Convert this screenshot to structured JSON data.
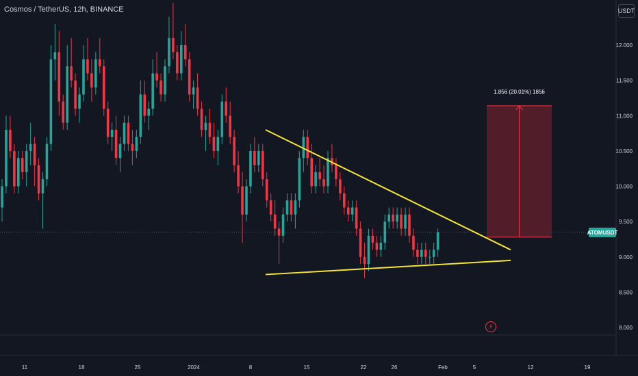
{
  "header": {
    "title": "Cosmos / TetherUS, 12h, BINANCE"
  },
  "currency_button": "USDT",
  "last_price_tag": "ATOMUSDT",
  "colors": {
    "background": "#131722",
    "bull": "#26a69a",
    "bear": "#f23645",
    "trendline": "#f5e634",
    "target_box_fill": "#5d1f2a",
    "target_box_stroke": "#f23645",
    "grid": "#2a2e39",
    "axis_text": "#d1d4dc"
  },
  "icons": {
    "flash": "lightning-bolt-icon"
  },
  "chart_data": {
    "type": "candlestick",
    "symbol": "ATOMUSDT",
    "interval": "12h",
    "exchange": "BINANCE",
    "y_axis": {
      "ticks": [
        "12.000",
        "11.500",
        "11.000",
        "10.500",
        "10.000",
        "9.500",
        "9.000",
        "8.500",
        "8.000"
      ],
      "range": [
        7.45,
        12.7
      ]
    },
    "x_axis": {
      "ticks": [
        "11",
        "18",
        "25",
        "2024",
        "8",
        "15",
        "22",
        "26",
        "Feb",
        "5",
        "12",
        "19"
      ]
    },
    "last_price": 9.35,
    "trendlines": [
      {
        "name": "descending resistance",
        "from": {
          "x": "2024-01-10",
          "y": 10.8
        },
        "to": {
          "x": "2024-02-06",
          "y": 9.1
        }
      },
      {
        "name": "ascending support",
        "from": {
          "x": "2024-01-12",
          "y": 8.75
        },
        "to": {
          "x": "2024-02-06",
          "y": 8.95
        }
      }
    ],
    "projection": {
      "label": "1.856 (20.01%) 1856",
      "from_price": 9.28,
      "to_price": 11.14
    },
    "candles_ohlc": [
      [
        9.7,
        10.1,
        9.5,
        10.0
      ],
      [
        10.0,
        11.0,
        9.9,
        10.8
      ],
      [
        10.8,
        11.0,
        10.4,
        10.5
      ],
      [
        10.5,
        10.6,
        9.9,
        10.0
      ],
      [
        10.0,
        10.5,
        9.9,
        10.4
      ],
      [
        10.4,
        10.5,
        10.1,
        10.2
      ],
      [
        10.2,
        10.6,
        10.0,
        10.5
      ],
      [
        10.5,
        10.9,
        10.3,
        10.6
      ],
      [
        10.6,
        10.7,
        10.0,
        10.3
      ],
      [
        10.3,
        10.4,
        9.8,
        9.9
      ],
      [
        9.9,
        10.2,
        9.4,
        10.1
      ],
      [
        10.1,
        10.7,
        10.0,
        10.6
      ],
      [
        10.6,
        12.0,
        10.5,
        11.8
      ],
      [
        11.8,
        12.3,
        11.5,
        11.9
      ],
      [
        11.9,
        12.2,
        11.0,
        11.2
      ],
      [
        11.2,
        11.3,
        10.8,
        10.9
      ],
      [
        10.9,
        12.0,
        10.8,
        11.7
      ],
      [
        11.7,
        12.1,
        11.4,
        11.5
      ],
      [
        11.5,
        11.6,
        11.0,
        11.1
      ],
      [
        11.1,
        11.4,
        10.9,
        11.3
      ],
      [
        11.3,
        12.0,
        11.2,
        11.8
      ],
      [
        11.8,
        12.1,
        11.5,
        11.6
      ],
      [
        11.6,
        11.8,
        11.2,
        11.4
      ],
      [
        11.4,
        11.9,
        11.3,
        11.8
      ],
      [
        11.8,
        12.1,
        11.6,
        11.7
      ],
      [
        11.7,
        11.8,
        11.0,
        11.1
      ],
      [
        11.1,
        11.2,
        10.6,
        10.7
      ],
      [
        10.7,
        10.9,
        10.5,
        10.8
      ],
      [
        10.8,
        11.0,
        10.3,
        10.4
      ],
      [
        10.4,
        10.7,
        10.2,
        10.6
      ],
      [
        10.6,
        11.0,
        10.5,
        10.9
      ],
      [
        10.9,
        11.0,
        10.5,
        10.6
      ],
      [
        10.6,
        10.8,
        10.3,
        10.5
      ],
      [
        10.5,
        10.8,
        10.4,
        10.7
      ],
      [
        10.7,
        11.5,
        10.6,
        11.3
      ],
      [
        11.3,
        11.5,
        10.9,
        11.0
      ],
      [
        11.0,
        11.2,
        10.8,
        11.1
      ],
      [
        11.1,
        11.8,
        11.0,
        11.6
      ],
      [
        11.6,
        11.9,
        11.4,
        11.5
      ],
      [
        11.5,
        11.6,
        11.2,
        11.3
      ],
      [
        11.3,
        11.8,
        11.2,
        11.7
      ],
      [
        11.7,
        12.4,
        11.6,
        12.1
      ],
      [
        12.1,
        12.6,
        11.8,
        11.9
      ],
      [
        11.9,
        12.0,
        11.5,
        11.6
      ],
      [
        11.6,
        12.2,
        11.5,
        12.0
      ],
      [
        12.0,
        12.3,
        11.7,
        11.8
      ],
      [
        11.8,
        11.9,
        11.2,
        11.3
      ],
      [
        11.3,
        11.5,
        11.1,
        11.4
      ],
      [
        11.4,
        11.6,
        11.0,
        11.1
      ],
      [
        11.1,
        11.2,
        10.7,
        10.8
      ],
      [
        10.8,
        11.0,
        10.5,
        10.9
      ],
      [
        10.9,
        11.1,
        10.6,
        10.7
      ],
      [
        10.7,
        10.9,
        10.4,
        10.5
      ],
      [
        10.5,
        10.8,
        10.3,
        10.7
      ],
      [
        10.7,
        11.3,
        10.6,
        11.2
      ],
      [
        11.2,
        11.4,
        10.9,
        11.0
      ],
      [
        11.0,
        11.2,
        10.6,
        10.7
      ],
      [
        10.7,
        10.8,
        10.2,
        10.3
      ],
      [
        10.3,
        10.5,
        9.9,
        10.0
      ],
      [
        10.0,
        10.2,
        9.2,
        9.6
      ],
      [
        9.6,
        10.1,
        9.5,
        10.0
      ],
      [
        10.0,
        10.6,
        9.9,
        10.5
      ],
      [
        10.5,
        10.7,
        10.2,
        10.3
      ],
      [
        10.3,
        10.6,
        10.2,
        10.5
      ],
      [
        10.5,
        10.6,
        10.0,
        10.1
      ],
      [
        10.1,
        10.2,
        9.7,
        9.8
      ],
      [
        9.8,
        9.9,
        9.5,
        9.6
      ],
      [
        9.6,
        9.8,
        9.3,
        9.4
      ],
      [
        9.4,
        9.5,
        8.9,
        9.3
      ],
      [
        9.3,
        9.7,
        9.2,
        9.6
      ],
      [
        9.6,
        9.9,
        9.5,
        9.8
      ],
      [
        9.8,
        9.9,
        9.5,
        9.6
      ],
      [
        9.6,
        9.9,
        9.4,
        9.8
      ],
      [
        9.8,
        10.5,
        9.7,
        10.4
      ],
      [
        10.4,
        10.8,
        10.2,
        10.7
      ],
      [
        10.7,
        10.8,
        10.3,
        10.4
      ],
      [
        10.4,
        10.6,
        9.9,
        10.0
      ],
      [
        10.0,
        10.3,
        9.9,
        10.2
      ],
      [
        10.2,
        10.4,
        10.0,
        10.1
      ],
      [
        10.1,
        10.3,
        9.9,
        10.0
      ],
      [
        10.0,
        10.5,
        9.9,
        10.4
      ],
      [
        10.4,
        10.6,
        10.2,
        10.3
      ],
      [
        10.3,
        10.4,
        10.0,
        10.1
      ],
      [
        10.1,
        10.2,
        9.8,
        9.9
      ],
      [
        9.9,
        10.0,
        9.6,
        9.7
      ],
      [
        9.7,
        9.8,
        9.5,
        9.6
      ],
      [
        9.6,
        9.8,
        9.5,
        9.7
      ],
      [
        9.7,
        9.8,
        9.3,
        9.4
      ],
      [
        9.4,
        9.5,
        8.9,
        9.0
      ],
      [
        9.0,
        9.2,
        8.7,
        8.9
      ],
      [
        8.9,
        9.4,
        8.8,
        9.3
      ],
      [
        9.3,
        9.4,
        9.1,
        9.2
      ],
      [
        9.2,
        9.3,
        9.0,
        9.1
      ],
      [
        9.1,
        9.3,
        9.0,
        9.2
      ],
      [
        9.2,
        9.6,
        9.1,
        9.5
      ],
      [
        9.5,
        9.7,
        9.4,
        9.6
      ],
      [
        9.6,
        9.7,
        9.4,
        9.5
      ],
      [
        9.5,
        9.7,
        9.4,
        9.6
      ],
      [
        9.6,
        9.7,
        9.3,
        9.4
      ],
      [
        9.4,
        9.7,
        9.3,
        9.6
      ],
      [
        9.6,
        9.7,
        9.2,
        9.3
      ],
      [
        9.3,
        9.4,
        9.0,
        9.1
      ],
      [
        9.1,
        9.2,
        8.9,
        9.0
      ],
      [
        9.0,
        9.2,
        8.9,
        9.1
      ],
      [
        9.1,
        9.2,
        8.9,
        9.0
      ],
      [
        9.0,
        9.1,
        8.9,
        9.0
      ],
      [
        9.0,
        9.2,
        8.9,
        9.1
      ],
      [
        9.1,
        9.4,
        9.0,
        9.35
      ]
    ]
  }
}
